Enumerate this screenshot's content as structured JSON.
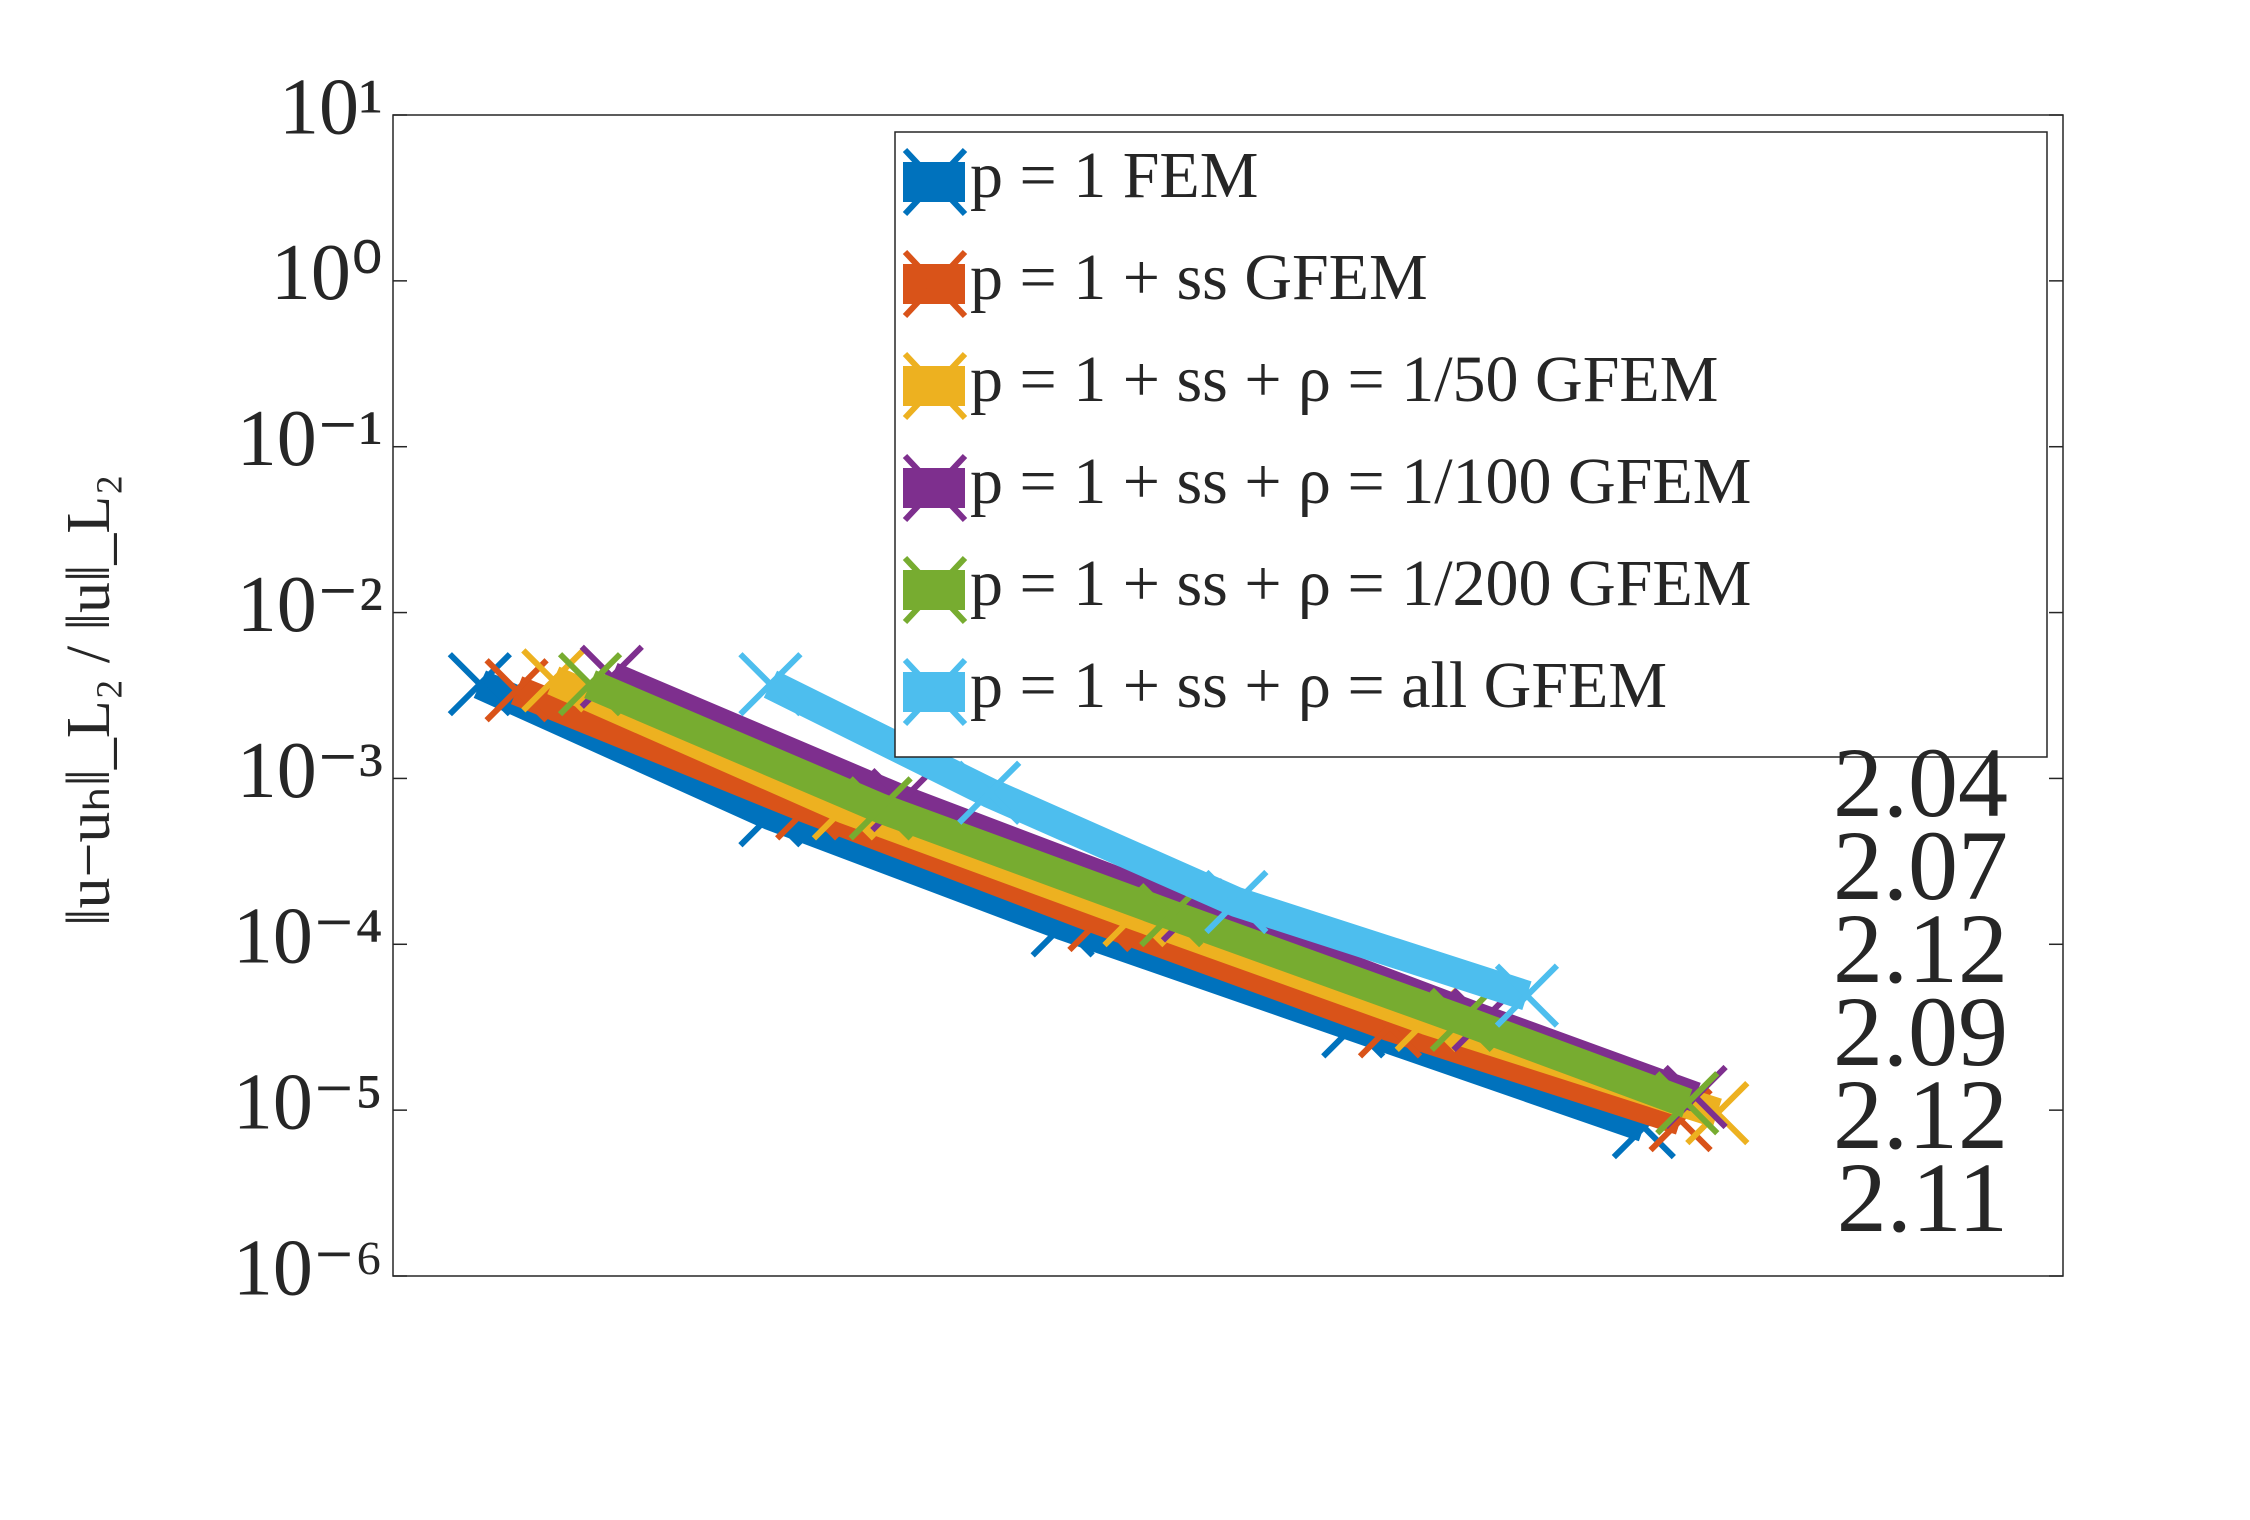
{
  "chart_data": {
    "type": "line",
    "ylabel": "‖u−uₕ‖_L₂ / ‖u‖_L₂",
    "ylog": true,
    "xlim": [
      0,
      1
    ],
    "ylim": [
      1e-06,
      10
    ],
    "yticks": [
      {
        "value": 10,
        "label": "10¹"
      },
      {
        "value": 1,
        "label": "10⁰"
      },
      {
        "value": 0.1,
        "label": "10⁻¹"
      },
      {
        "value": 0.01,
        "label": "10⁻²"
      },
      {
        "value": 0.001,
        "label": "10⁻³"
      },
      {
        "value": 0.0001,
        "label": "10⁻⁴"
      },
      {
        "value": 1e-05,
        "label": "10⁻⁵"
      },
      {
        "value": 1e-06,
        "label": "10⁻⁶"
      }
    ],
    "legend": "upper right",
    "series": [
      {
        "name": "p = 1 FEM",
        "color": "#0072bd",
        "rate": "2.04",
        "x": [
          0.052,
          0.226,
          0.401,
          0.575,
          0.749
        ],
        "values": [
          0.0037,
          0.0006,
          0.00013,
          3.2e-05,
          7.9e-06
        ]
      },
      {
        "name": "p = 1 + ss GFEM",
        "color": "#d95319",
        "rate": "2.07",
        "x": [
          0.074,
          0.248,
          0.423,
          0.597,
          0.771
        ],
        "values": [
          0.0034,
          0.00066,
          0.00014,
          3.2e-05,
          8.7e-06
        ]
      },
      {
        "name": "p = 1 + ss + ρ = 1/50 GFEM",
        "color": "#edb120",
        "rate": "2.12",
        "x": [
          0.096,
          0.27,
          0.444,
          0.619,
          0.793
        ],
        "values": [
          0.0039,
          0.00066,
          0.00015,
          3.5e-05,
          9.6e-06
        ]
      },
      {
        "name": "p = 1 + ss + ρ = 1/100 GFEM",
        "color": "#7e2f8e",
        "rate": "2.09",
        "x": [
          0.131,
          0.305,
          0.479,
          0.653,
          0.78
        ],
        "values": [
          0.0041,
          0.00074,
          0.00016,
          3.5e-05,
          1.2e-05
        ]
      },
      {
        "name": "p = 1 + ss + ρ = 1/200 GFEM",
        "color": "#77ac30",
        "rate": "2.12",
        "x": [
          0.118,
          0.292,
          0.466,
          0.64,
          0.775
        ],
        "values": [
          0.0037,
          0.00066,
          0.00015,
          3.5e-05,
          1.1e-05
        ]
      },
      {
        "name": "p = 1 + ss + ρ = all GFEM",
        "color": "#4dbeee",
        "rate": "2.11",
        "x": [
          0.226,
          0.357,
          0.505,
          0.679
        ],
        "values": [
          0.0037,
          0.00082,
          0.00018,
          4.9e-05
        ]
      }
    ]
  }
}
